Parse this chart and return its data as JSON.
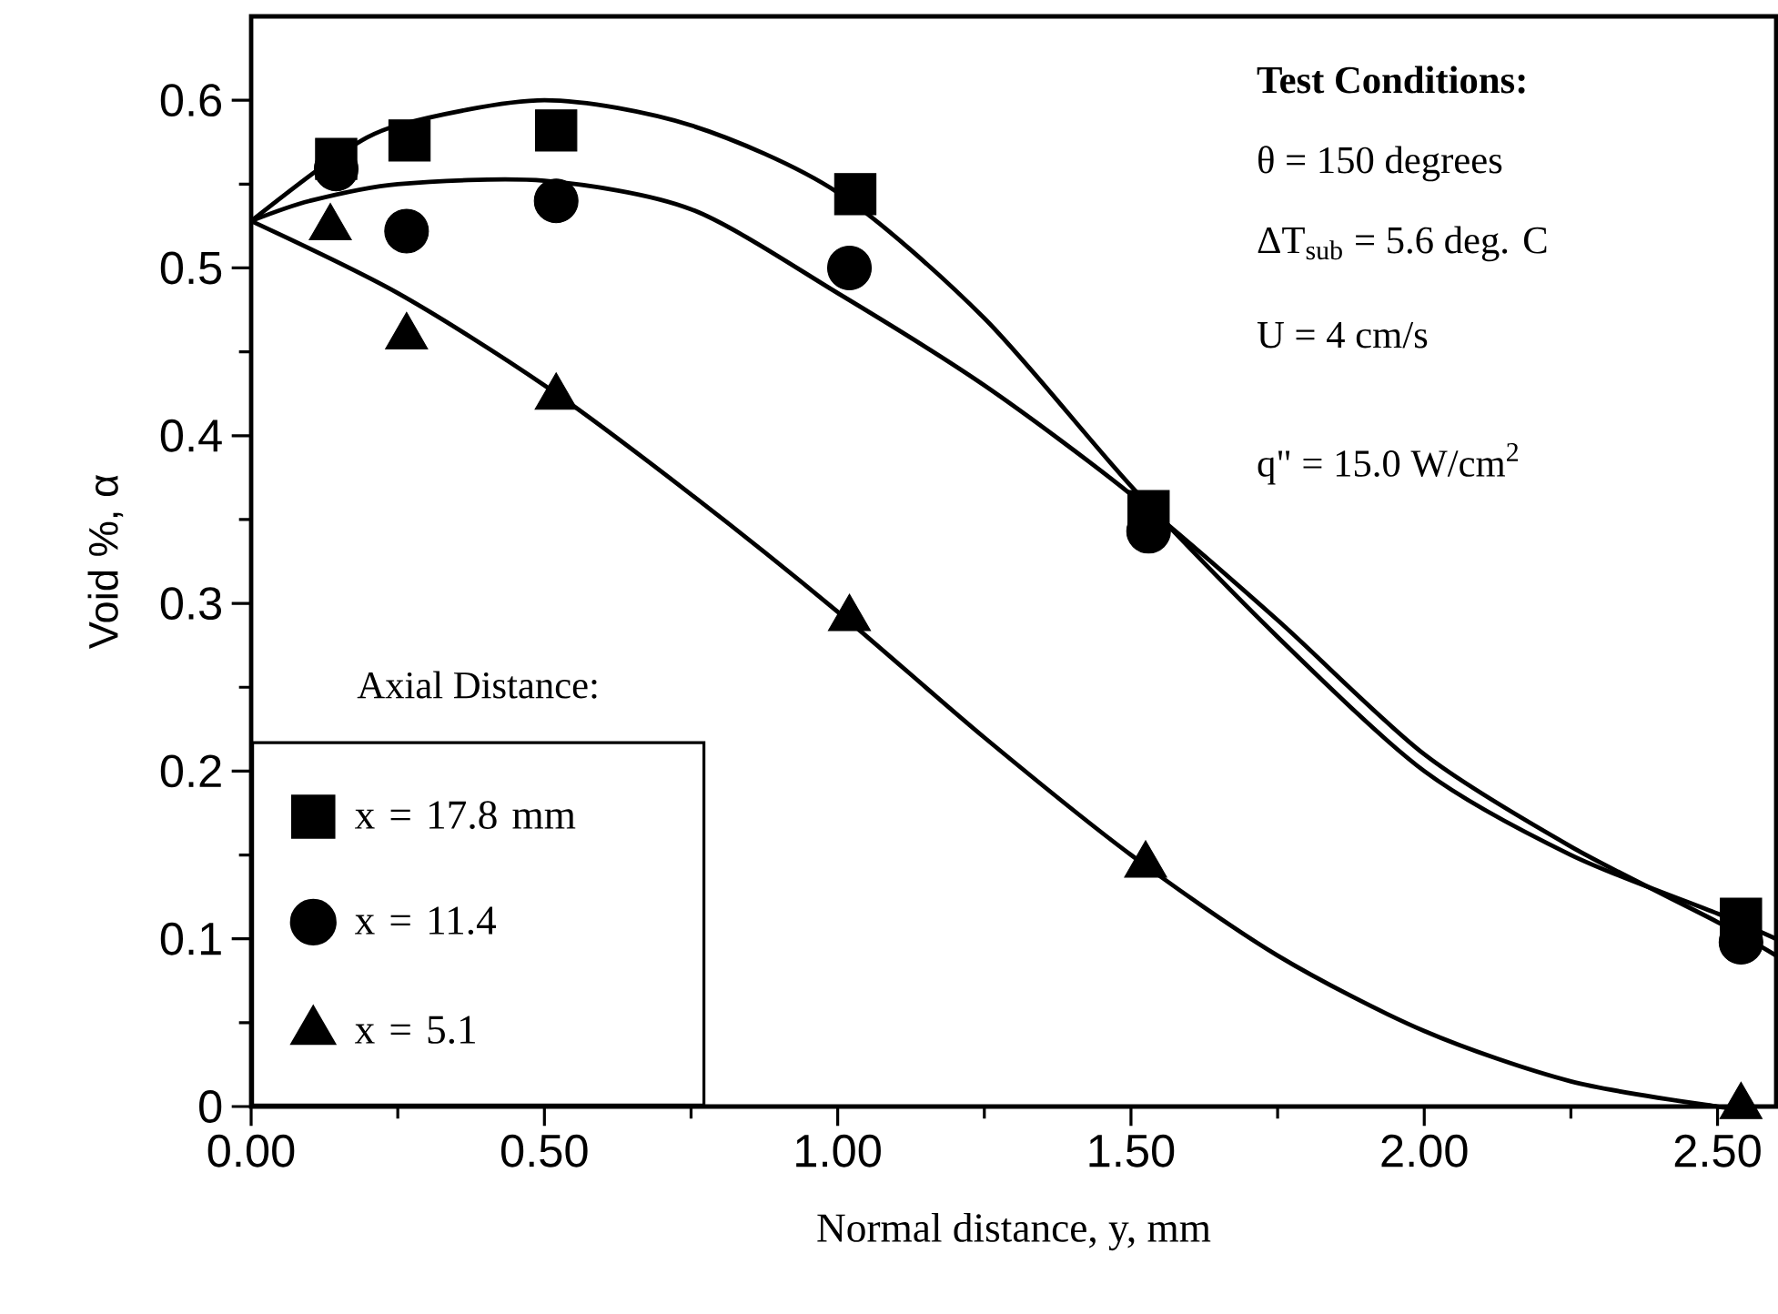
{
  "chart_data": {
    "type": "scatter",
    "xlabel": "Normal distance, y, mm",
    "ylabel": "Void %, α",
    "xlim": [
      0,
      2.6
    ],
    "ylim": [
      0,
      0.65
    ],
    "xticks": [
      {
        "value": 0,
        "label": "0.00"
      },
      {
        "value": 0.5,
        "label": "0.50"
      },
      {
        "value": 1,
        "label": "1.00"
      },
      {
        "value": 1.5,
        "label": "1.50"
      },
      {
        "value": 2,
        "label": "2.00"
      },
      {
        "value": 2.5,
        "label": "2.50"
      }
    ],
    "yticks": [
      0,
      0.1,
      0.2,
      0.3,
      0.4,
      0.5,
      0.6
    ],
    "legend": "bottom left",
    "legend_title": "Axial Distance:",
    "annotations": [
      "**Test Conditions:**",
      "θ = 150 degrees",
      "ΔT$_{sub}$ = 5.6 deg. C",
      "U = 4 cm/s",
      "q\" = 15.0 W/cm$^{2}$"
    ],
    "series": [
      {
        "name": "x = 17.8 mm",
        "marker": "square",
        "color": "#000000",
        "x": [
          0.145,
          0.27,
          0.52,
          1.03,
          1.53,
          2.54
        ],
        "values": [
          0.565,
          0.576,
          0.582,
          0.544,
          0.355,
          0.112
        ]
      },
      {
        "name": "x = 11.4",
        "marker": "circle",
        "color": "#000000",
        "x": [
          0.145,
          0.265,
          0.52,
          1.02,
          1.53,
          2.54
        ],
        "values": [
          0.559,
          0.522,
          0.54,
          0.5,
          0.343,
          0.098
        ]
      },
      {
        "name": "x = 5.1",
        "marker": "triangle",
        "color": "#000000",
        "x": [
          0.135,
          0.265,
          0.52,
          1.02,
          1.525,
          2.54
        ],
        "values": [
          0.524,
          0.459,
          0.423,
          0.291,
          0.144,
          0.0
        ]
      },
      {
        "type": "line",
        "line_style": "solid",
        "color": "#000000",
        "x": [
          0,
          0.14,
          0.25,
          0.5,
          0.75,
          1.0,
          1.25,
          1.5,
          1.75,
          2.0,
          2.25,
          2.5,
          2.6
        ],
        "values": [
          0.528,
          0.565,
          0.585,
          0.6,
          0.585,
          0.545,
          0.47,
          0.37,
          0.28,
          0.2,
          0.15,
          0.115,
          0.1
        ]
      },
      {
        "type": "line",
        "line_style": "solid",
        "color": "#000000",
        "x": [
          0,
          0.1,
          0.25,
          0.5,
          0.75,
          1.0,
          1.25,
          1.5,
          1.75,
          2.0,
          2.25,
          2.5,
          2.6
        ],
        "values": [
          0.528,
          0.54,
          0.55,
          0.552,
          0.535,
          0.485,
          0.43,
          0.365,
          0.29,
          0.21,
          0.155,
          0.11,
          0.09
        ]
      },
      {
        "type": "line",
        "line_style": "solid",
        "color": "#000000",
        "x": [
          0,
          0.25,
          0.5,
          0.75,
          1.0,
          1.25,
          1.5,
          1.75,
          2.0,
          2.25,
          2.5,
          2.54
        ],
        "values": [
          0.528,
          0.485,
          0.43,
          0.365,
          0.295,
          0.22,
          0.15,
          0.09,
          0.045,
          0.015,
          0.0,
          0.0
        ]
      }
    ]
  }
}
